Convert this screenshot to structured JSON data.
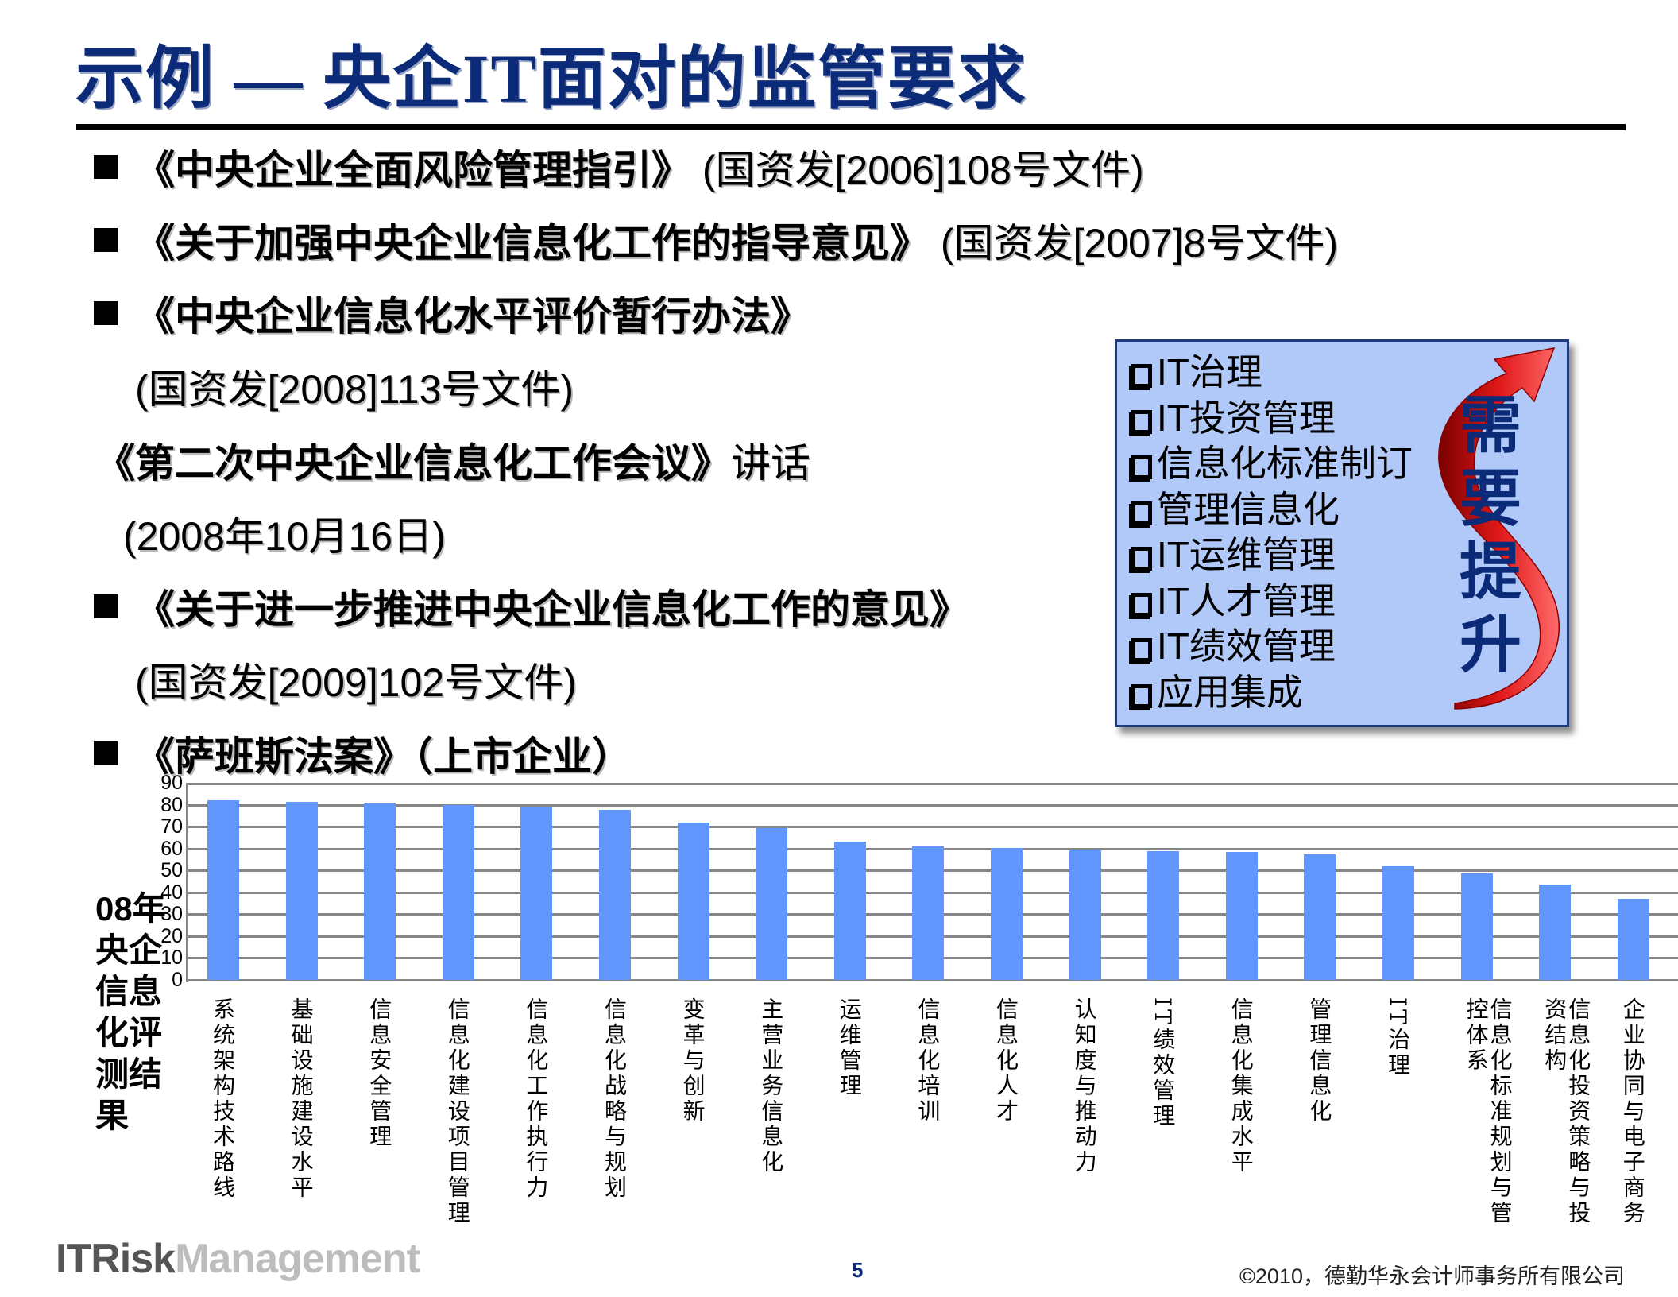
{
  "slide": {
    "title": "示例  —  央企IT面对的监管要求",
    "page_number": "5",
    "copyright": "©2010，德勤华永会计师事务所有限公司",
    "brand_dark": "ITRisk",
    "brand_light": "Management"
  },
  "regulations": [
    {
      "bold": "《中央企业全面风险管理指引》",
      "normal": " (国资发[2006]108号文件)",
      "bullet": true
    },
    {
      "bold": "《关于加强中央企业信息化工作的指导意见》",
      "normal": " (国资发[2007]8号文件)",
      "bullet": true
    },
    {
      "bold": "《中央企业信息化水平评价暂行办法》",
      "normal": "",
      "bullet": true
    },
    {
      "bold": "",
      "normal": "(国资发[2008]113号文件)",
      "bullet": false
    },
    {
      "bold": "《第二次中央企业信息化工作会议》",
      "normal": "讲话",
      "bullet": false
    },
    {
      "bold": "",
      "normal": "(2008年10月16日)",
      "bullet": false
    },
    {
      "bold": "《关于进一步推进中央企业信息化工作的意见》",
      "normal": "",
      "bullet": true
    },
    {
      "bold": "",
      "normal": "(国资发[2009]102号文件)",
      "bullet": false
    },
    {
      "bold": "《萨班斯法案》（上市企业）",
      "normal": "",
      "bullet": true
    }
  ],
  "requirements_box": {
    "items": [
      "IT治理",
      "IT投资管理",
      "信息化标准制订",
      "管理信息化",
      "IT运维管理",
      "IT人才管理",
      "IT绩效管理",
      "应用集成"
    ],
    "emphasis": [
      "需",
      "要",
      "提",
      "升"
    ],
    "colors": {
      "background": "#b1c9f9",
      "border": "#1f3a7a",
      "arrow": "#cc1111",
      "emphasis_text": "#0b2a78"
    }
  },
  "chart_side_label": "08年央企信息化评测结果",
  "chart_data": {
    "type": "bar",
    "title": "08年央企信息化评测结果",
    "xlabel": "",
    "ylabel": "",
    "ylim": [
      0,
      90
    ],
    "yticks": [
      0,
      10,
      20,
      30,
      40,
      50,
      60,
      70,
      80,
      90
    ],
    "grid": true,
    "legend": null,
    "bar_color": "#6096fd",
    "categories": [
      "系统架构技术路线",
      "基础设施建设水平",
      "信息安全管理",
      "信息化建设项目管理",
      "信息化工作执行力",
      "信息化战略与规划",
      "变革与创新",
      "主营业务信息化",
      "运维管理",
      "信息化培训",
      "信息化人才",
      "认知度与推动力",
      "IT绩效管理",
      "信息化集成水平",
      "管理信息化",
      "IT治理",
      "信息化标准规划与管控体系",
      "信息化投资策略与投资结构",
      "企业协同与电子商务"
    ],
    "values": [
      82,
      81.4,
      80.4,
      80,
      78.6,
      77.5,
      71.8,
      69.3,
      63.3,
      60.8,
      60.4,
      59.4,
      58.7,
      58.3,
      57.2,
      51.9,
      48.7,
      43.7,
      37
    ]
  }
}
